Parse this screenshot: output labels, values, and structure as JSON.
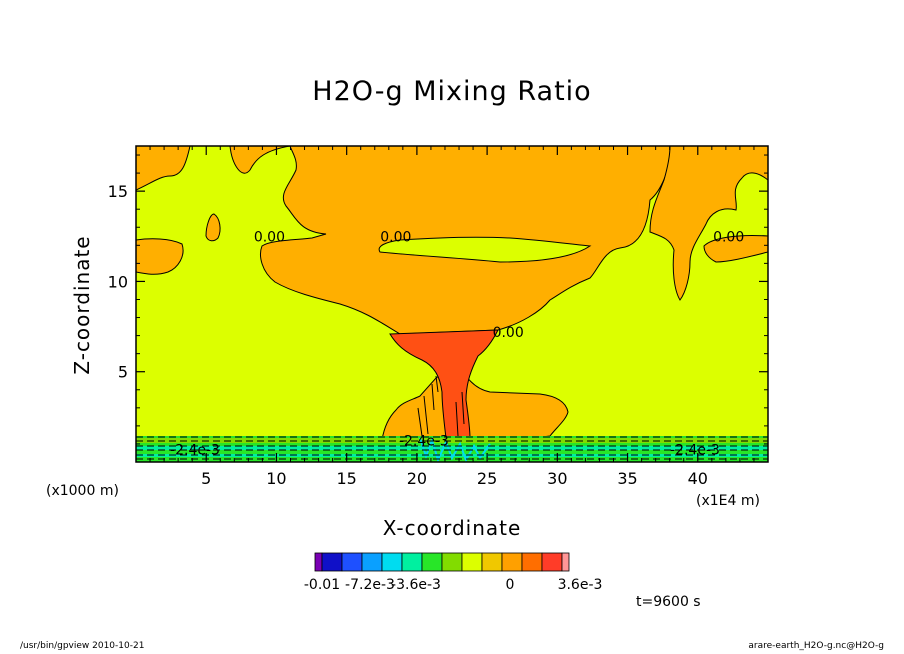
{
  "title": "H2O-g Mixing Ratio",
  "xlabel": "X-coordinate",
  "ylabel": "Z-coordinate",
  "x_unit_note": "(x1000 m)",
  "x_unit_extra": "(x1E4 m)",
  "time_label": "t=9600 s",
  "footer_left": "/usr/bin/gpview  2010-10-21",
  "footer_right": "arare-earth_H2O-g.nc@H2O-g",
  "chart_data": {
    "type": "heatmap",
    "title": "H2O-g Mixing Ratio",
    "xlabel": "X-coordinate",
    "ylabel": "Z-coordinate",
    "xlim": [
      0,
      45
    ],
    "ylim": [
      0,
      17.5
    ],
    "x_ticks": [
      5,
      10,
      15,
      20,
      25,
      30,
      35,
      40
    ],
    "y_ticks": [
      5,
      10,
      15
    ],
    "contour_labels": [
      {
        "text": "0.00",
        "x": 9.5,
        "z": 12.5
      },
      {
        "text": "0.00",
        "x": 18.5,
        "z": 12.5
      },
      {
        "text": "0.00",
        "x": 26.5,
        "z": 7.2
      },
      {
        "text": "0.00",
        "x": 42.2,
        "z": 12.5
      },
      {
        "text": "-2.4e-3",
        "x": 4.2,
        "z": 0.7
      },
      {
        "text": "-2.4e-3",
        "x": 20.5,
        "z": 1.2
      },
      {
        "text": "-2.4e-3",
        "x": 39.8,
        "z": 0.7
      }
    ],
    "colorbar": {
      "colors": [
        "#7a00b4",
        "#1010c8",
        "#1e50ff",
        "#0aa0ff",
        "#00dcf0",
        "#00f0a0",
        "#28e628",
        "#82dc00",
        "#dcff00",
        "#f0c800",
        "#ffa000",
        "#ff6e00",
        "#ff3c28",
        "#ff9696"
      ],
      "tick_labels": [
        "-0.01",
        "-7.2e-3",
        "-3.6e-3",
        "0",
        "3.6e-3"
      ]
    },
    "background_color": "#dcff00",
    "cloud_color": "#ffaf00",
    "core_color": "#ff5014"
  }
}
